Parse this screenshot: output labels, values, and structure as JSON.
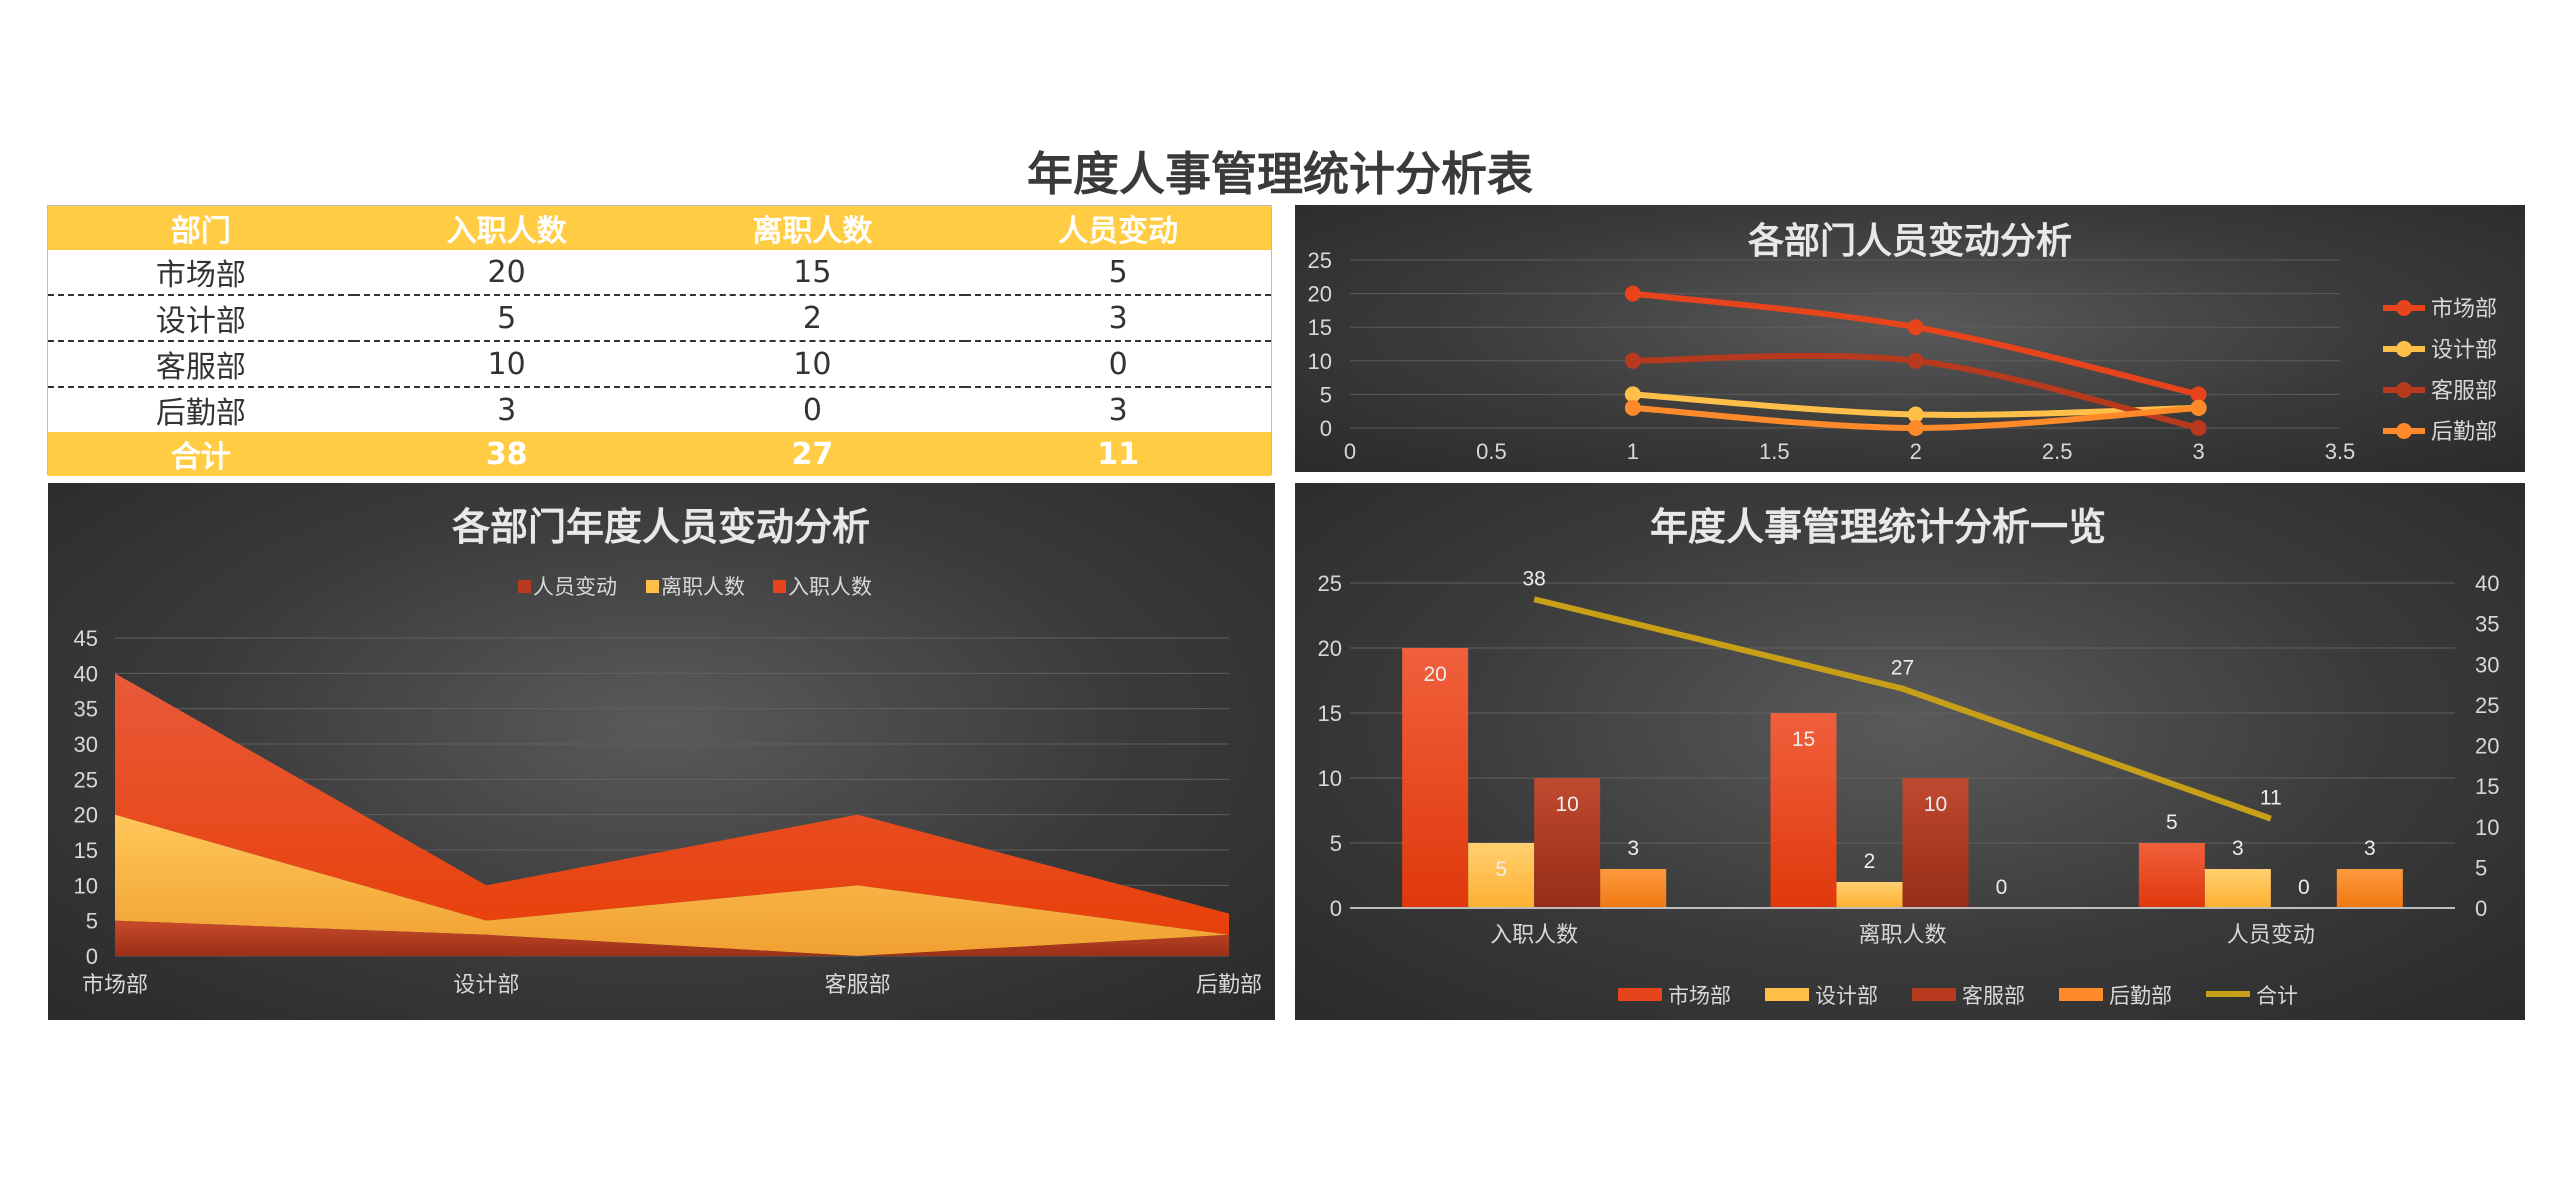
{
  "page": {
    "title": "年度人事管理统计分析表"
  },
  "table": {
    "headers": [
      "部门",
      "入职人数",
      "离职人数",
      "人员变动"
    ],
    "rows": [
      [
        "市场部",
        "20",
        "15",
        "5"
      ],
      [
        "设计部",
        "5",
        "2",
        "3"
      ],
      [
        "客服部",
        "10",
        "10",
        "0"
      ],
      [
        "后勤部",
        "3",
        "0",
        "3"
      ]
    ],
    "total": [
      "合计",
      "38",
      "27",
      "11"
    ]
  },
  "colors": {
    "market": "#e8441c",
    "design": "#ffc04a",
    "service": "#b83a1e",
    "logistics": "#ff8a2a",
    "total": "#c8a018",
    "header": "#ffcc44"
  },
  "chart_data": [
    {
      "type": "line",
      "title": "各部门人员变动分析",
      "x": [
        1,
        2,
        3
      ],
      "xlim": [
        0,
        3.5
      ],
      "xticks": [
        "0",
        "0.5",
        "1",
        "1.5",
        "2",
        "2.5",
        "3",
        "3.5"
      ],
      "ylim": [
        0,
        25
      ],
      "yticks": [
        "0",
        "5",
        "10",
        "15",
        "20",
        "25"
      ],
      "series": [
        {
          "name": "市场部",
          "values": [
            20,
            15,
            5
          ],
          "color": "#e8441c"
        },
        {
          "name": "设计部",
          "values": [
            5,
            2,
            3
          ],
          "color": "#ffc04a"
        },
        {
          "name": "客服部",
          "values": [
            10,
            10,
            0
          ],
          "color": "#b83a1e"
        },
        {
          "name": "后勤部",
          "values": [
            3,
            0,
            3
          ],
          "color": "#ff8a2a"
        }
      ],
      "legend": "right",
      "grid": true
    },
    {
      "type": "area",
      "stacked": true,
      "title": "各部门年度人员变动分析",
      "categories": [
        "市场部",
        "设计部",
        "客服部",
        "后勤部"
      ],
      "ylim": [
        0,
        45
      ],
      "yticks": [
        "0",
        "5",
        "10",
        "15",
        "20",
        "25",
        "30",
        "35",
        "40",
        "45"
      ],
      "series": [
        {
          "name": "人员变动",
          "values": [
            5,
            3,
            0,
            3
          ],
          "color": "#b83a1e"
        },
        {
          "name": "离职人数",
          "values": [
            15,
            2,
            10,
            0
          ],
          "color": "#ffc04a"
        },
        {
          "name": "入职人数",
          "values": [
            20,
            5,
            10,
            3
          ],
          "color": "#e8441c"
        }
      ],
      "legend": "top",
      "grid": true
    },
    {
      "type": "bar",
      "title": "年度人事管理统计分析一览",
      "categories": [
        "入职人数",
        "离职人数",
        "人员变动"
      ],
      "ylim": [
        0,
        25
      ],
      "yticks": [
        "0",
        "5",
        "10",
        "15",
        "20",
        "25"
      ],
      "y2lim": [
        0,
        40
      ],
      "y2ticks": [
        "0",
        "5",
        "10",
        "15",
        "20",
        "25",
        "30",
        "35",
        "40"
      ],
      "series": [
        {
          "name": "市场部",
          "values": [
            20,
            15,
            5
          ],
          "color": "#e8441c"
        },
        {
          "name": "设计部",
          "values": [
            5,
            2,
            3
          ],
          "color": "#ffc04a"
        },
        {
          "name": "客服部",
          "values": [
            10,
            10,
            0
          ],
          "color": "#b83a1e"
        },
        {
          "name": "后勤部",
          "values": [
            3,
            0,
            3
          ],
          "color": "#ff8a2a"
        }
      ],
      "line_series": {
        "name": "合计",
        "values": [
          38,
          27,
          11
        ],
        "color": "#c8a018",
        "axis": "secondary"
      },
      "legend": "bottom",
      "grid": true
    }
  ]
}
